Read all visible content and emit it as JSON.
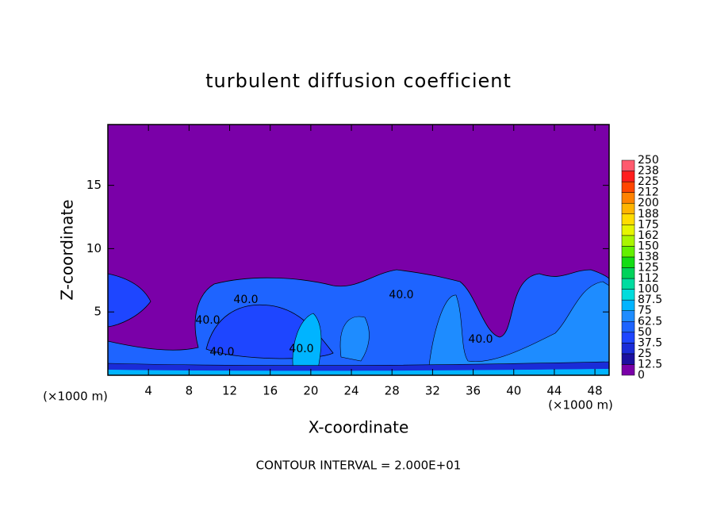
{
  "chart_data": {
    "type": "contour",
    "title": "turbulent diffusion coefficient",
    "x_label": "X-coordinate",
    "y_label": "Z-coordinate",
    "x_unit_labels": [
      "(×1000 m)",
      "(×1000 m)"
    ],
    "footer": "CONTOUR INTERVAL = 2.000E+01",
    "xlim": [
      0,
      49.4
    ],
    "ylim": [
      0,
      19.8
    ],
    "xticks": [
      4,
      8,
      12,
      16,
      20,
      24,
      28,
      32,
      36,
      40,
      44,
      48
    ],
    "yticks": [
      5,
      10,
      15
    ],
    "contour_labels": [
      "40.0",
      "40.0",
      "40.0",
      "40.0",
      "40.0",
      "40.0"
    ],
    "colorbar": {
      "ticks": [
        0,
        12.5,
        25,
        37.5,
        50,
        62.5,
        75,
        87.5,
        100,
        112,
        125,
        138,
        150,
        162,
        175,
        188,
        200,
        212,
        225,
        238,
        250
      ],
      "colors": [
        "#7a00a8",
        "#1c10a0",
        "#1a2cd8",
        "#1e46ff",
        "#1e64ff",
        "#1e8cff",
        "#00b4ff",
        "#00dcdc",
        "#00dca0",
        "#00d25a",
        "#14dc14",
        "#64f000",
        "#aaf500",
        "#e6f500",
        "#ffdc00",
        "#ffb400",
        "#ff8200",
        "#ff4600",
        "#ff1e1e",
        "#ff5a6e"
      ]
    }
  }
}
